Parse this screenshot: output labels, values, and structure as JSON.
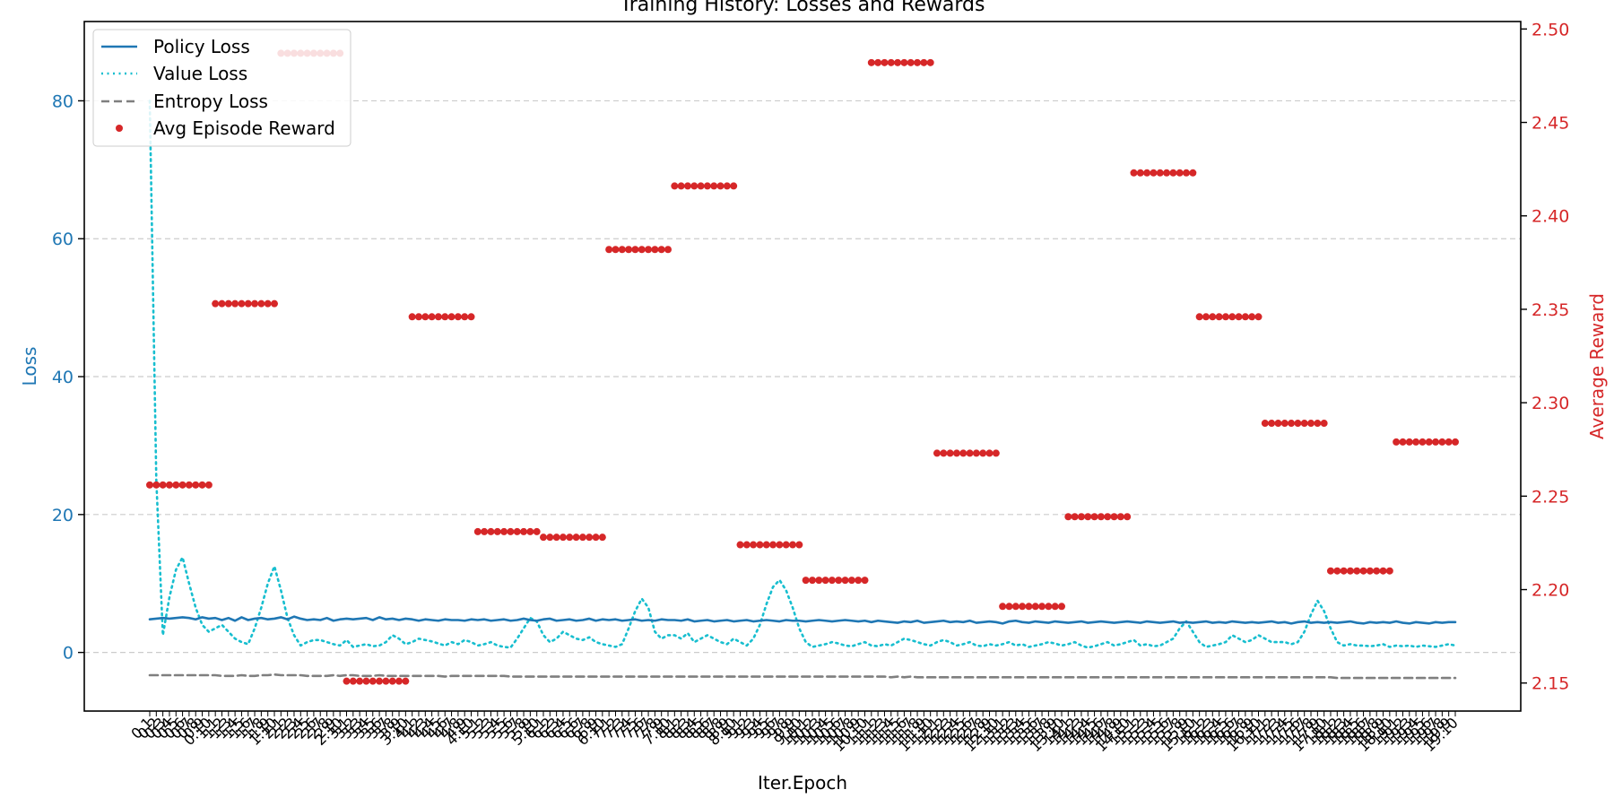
{
  "chart_data": {
    "type": "line",
    "title": "Training History: Losses and Rewards",
    "xlabel": "Iter.Epoch",
    "ylabel_left": "Loss",
    "ylabel_right": "Average Reward",
    "ylim_left": [
      -8.5,
      91.5
    ],
    "ylim_right": [
      2.135,
      2.504
    ],
    "yticks_left": [
      "0",
      "20",
      "40",
      "60",
      "80"
    ],
    "yticks_right": [
      "2.15",
      "2.20",
      "2.25",
      "2.30",
      "2.35",
      "2.40",
      "2.45",
      "2.50"
    ],
    "grid": "horizontal-dashed",
    "legend_position": "upper-left",
    "x_ticks": [
      "0.1",
      "0.2",
      "0.3",
      "0.4",
      "0.5",
      "0.6",
      "0.7",
      "0.8",
      "0.9",
      "0.10",
      "1.1",
      "1.2",
      "1.3",
      "1.4",
      "1.5",
      "1.6",
      "1.7",
      "1.8",
      "1.9",
      "1.10",
      "2.1",
      "2.2",
      "2.3",
      "2.4",
      "2.5",
      "2.6",
      "2.7",
      "2.8",
      "2.9",
      "2.10",
      "3.1",
      "3.2",
      "3.3",
      "3.4",
      "3.5",
      "3.6",
      "3.7",
      "3.8",
      "3.9",
      "3.10",
      "4.1",
      "4.2",
      "4.3",
      "4.4",
      "4.5",
      "4.6",
      "4.7",
      "4.8",
      "4.9",
      "4.10",
      "5.1",
      "5.2",
      "5.3",
      "5.4",
      "5.5",
      "5.6",
      "5.7",
      "5.8",
      "5.9",
      "5.10",
      "6.1",
      "6.2",
      "6.3",
      "6.4",
      "6.5",
      "6.6",
      "6.7",
      "6.8",
      "6.9",
      "6.10",
      "7.1",
      "7.2",
      "7.3",
      "7.4",
      "7.5",
      "7.6",
      "7.7",
      "7.8",
      "7.9",
      "7.10",
      "8.1",
      "8.2",
      "8.3",
      "8.4",
      "8.5",
      "8.6",
      "8.7",
      "8.8",
      "8.9",
      "8.10",
      "9.1",
      "9.2",
      "9.3",
      "9.4",
      "9.5",
      "9.6",
      "9.7",
      "9.8",
      "9.9",
      "9.10",
      "10.1",
      "10.2",
      "10.3",
      "10.4",
      "10.5",
      "10.6",
      "10.7",
      "10.8",
      "10.9",
      "10.10",
      "11.1",
      "11.2",
      "11.3",
      "11.4",
      "11.5",
      "11.6",
      "11.7",
      "11.8",
      "11.9",
      "11.10",
      "12.1",
      "12.2",
      "12.3",
      "12.4",
      "12.5",
      "12.6",
      "12.7",
      "12.8",
      "12.9",
      "12.10",
      "13.1",
      "13.2",
      "13.3",
      "13.4",
      "13.5",
      "13.6",
      "13.7",
      "13.8",
      "13.9",
      "13.10",
      "14.1",
      "14.2",
      "14.3",
      "14.4",
      "14.5",
      "14.6",
      "14.7",
      "14.8",
      "14.9",
      "14.10",
      "15.1",
      "15.2",
      "15.3",
      "15.4",
      "15.5",
      "15.6",
      "15.7",
      "15.8",
      "15.9",
      "15.10",
      "16.1",
      "16.2",
      "16.3",
      "16.4",
      "16.5",
      "16.6",
      "16.7",
      "16.8",
      "16.9",
      "16.10",
      "17.1",
      "17.2",
      "17.3",
      "17.4",
      "17.5",
      "17.6",
      "17.7",
      "17.8",
      "17.9",
      "17.10",
      "18.1",
      "18.2",
      "18.3",
      "18.4",
      "18.5",
      "18.6",
      "18.7",
      "18.8",
      "18.9",
      "18.10",
      "19.1",
      "19.2",
      "19.3",
      "19.4",
      "19.5",
      "19.6",
      "19.7",
      "19.8",
      "19.9",
      "19.10"
    ],
    "reward_per_iteration": [
      2.256,
      2.353,
      2.487,
      2.151,
      2.346,
      2.231,
      2.228,
      2.382,
      2.416,
      2.224,
      2.205,
      2.482,
      2.273,
      2.191,
      2.239,
      2.423,
      2.346,
      2.289,
      2.21,
      2.279
    ],
    "series": [
      {
        "name": "Policy Loss",
        "axis": "left",
        "color": "#1f77b4",
        "style": "solid",
        "values": [
          4.8,
          4.9,
          5.0,
          4.9,
          5.0,
          5.1,
          5.0,
          4.8,
          5.1,
          4.9,
          5.0,
          4.7,
          5.0,
          4.6,
          5.1,
          4.7,
          4.9,
          5.0,
          4.8,
          4.9,
          5.1,
          4.8,
          5.2,
          4.9,
          4.7,
          4.8,
          4.7,
          5.0,
          4.6,
          4.8,
          4.9,
          4.8,
          4.9,
          5.0,
          4.7,
          5.1,
          4.8,
          4.9,
          4.7,
          4.9,
          4.8,
          4.6,
          4.8,
          4.7,
          4.6,
          4.8,
          4.7,
          4.7,
          4.6,
          4.8,
          4.7,
          4.8,
          4.6,
          4.7,
          4.8,
          4.6,
          4.7,
          4.9,
          4.7,
          4.6,
          4.8,
          4.9,
          4.6,
          4.7,
          4.8,
          4.6,
          4.7,
          4.9,
          4.6,
          4.8,
          4.7,
          4.8,
          4.6,
          4.7,
          4.8,
          4.6,
          4.7,
          4.6,
          4.8,
          4.7,
          4.7,
          4.6,
          4.8,
          4.5,
          4.6,
          4.7,
          4.5,
          4.6,
          4.7,
          4.5,
          4.6,
          4.7,
          4.5,
          4.6,
          4.7,
          4.6,
          4.5,
          4.7,
          4.6,
          4.6,
          4.5,
          4.6,
          4.7,
          4.6,
          4.5,
          4.6,
          4.7,
          4.6,
          4.5,
          4.6,
          4.4,
          4.6,
          4.5,
          4.4,
          4.3,
          4.5,
          4.4,
          4.6,
          4.3,
          4.4,
          4.5,
          4.6,
          4.4,
          4.5,
          4.4,
          4.6,
          4.3,
          4.4,
          4.5,
          4.4,
          4.2,
          4.5,
          4.6,
          4.4,
          4.3,
          4.5,
          4.4,
          4.3,
          4.5,
          4.4,
          4.3,
          4.4,
          4.5,
          4.3,
          4.4,
          4.5,
          4.4,
          4.3,
          4.4,
          4.5,
          4.4,
          4.3,
          4.5,
          4.4,
          4.3,
          4.4,
          4.5,
          4.3,
          4.4,
          4.3,
          4.4,
          4.5,
          4.3,
          4.4,
          4.3,
          4.5,
          4.4,
          4.3,
          4.4,
          4.3,
          4.4,
          4.5,
          4.3,
          4.4,
          4.2,
          4.4,
          4.5,
          4.3,
          4.4,
          4.3,
          4.4,
          4.3,
          4.4,
          4.5,
          4.3,
          4.2,
          4.4,
          4.3,
          4.4,
          4.3,
          4.5,
          4.3,
          4.2,
          4.4,
          4.3,
          4.2,
          4.4,
          4.3,
          4.4,
          4.4
        ]
      },
      {
        "name": "Value Loss",
        "axis": "left",
        "color": "#17becf",
        "style": "dotted",
        "values": [
          80.0,
          25.0,
          2.5,
          8.0,
          12.0,
          13.8,
          10.0,
          6.5,
          4.0,
          3.0,
          3.5,
          4.0,
          3.0,
          2.0,
          1.5,
          1.2,
          3.5,
          6.5,
          10.0,
          12.5,
          9.0,
          5.0,
          2.5,
          1.0,
          1.5,
          1.8,
          1.8,
          1.5,
          1.2,
          1.0,
          1.8,
          0.8,
          1.0,
          1.2,
          0.9,
          1.0,
          1.5,
          2.5,
          2.0,
          1.2,
          1.5,
          2.0,
          1.8,
          1.6,
          1.3,
          1.0,
          1.5,
          1.2,
          1.8,
          1.5,
          1.0,
          1.2,
          1.5,
          1.0,
          0.8,
          0.7,
          2.0,
          3.5,
          5.0,
          4.5,
          2.5,
          1.5,
          2.0,
          3.0,
          2.5,
          2.0,
          1.8,
          2.2,
          1.5,
          1.2,
          1.0,
          0.8,
          1.2,
          3.5,
          6.0,
          7.8,
          6.5,
          3.0,
          2.0,
          2.5,
          2.5,
          2.0,
          2.8,
          1.5,
          2.0,
          2.5,
          2.0,
          1.5,
          1.2,
          2.0,
          1.5,
          1.0,
          2.0,
          4.0,
          7.0,
          9.5,
          10.5,
          9.0,
          6.5,
          3.5,
          1.5,
          0.8,
          1.0,
          1.2,
          1.5,
          1.3,
          1.0,
          0.9,
          1.2,
          1.5,
          1.0,
          0.9,
          1.2,
          1.0,
          1.5,
          2.0,
          1.8,
          1.5,
          1.2,
          1.0,
          1.5,
          1.8,
          1.5,
          1.0,
          1.2,
          1.5,
          1.0,
          0.9,
          1.2,
          1.0,
          1.2,
          1.5,
          1.0,
          1.2,
          0.8,
          1.0,
          1.2,
          1.5,
          1.3,
          1.0,
          1.2,
          1.5,
          1.0,
          0.7,
          0.9,
          1.2,
          1.5,
          1.0,
          1.2,
          1.5,
          1.8,
          1.0,
          1.2,
          0.9,
          1.0,
          1.5,
          2.0,
          3.5,
          4.5,
          3.0,
          1.5,
          0.8,
          1.0,
          1.2,
          1.5,
          2.5,
          2.0,
          1.5,
          1.8,
          2.5,
          2.0,
          1.5,
          1.5,
          1.5,
          1.2,
          1.5,
          3.0,
          5.5,
          7.5,
          6.0,
          3.5,
          1.5,
          1.0,
          1.2,
          1.0,
          1.0,
          0.9,
          1.0,
          1.2,
          0.8,
          1.0,
          0.9,
          1.0,
          0.8,
          1.0,
          0.9,
          0.8,
          1.0,
          1.2,
          1.0
        ]
      },
      {
        "name": "Entropy Loss",
        "axis": "left",
        "color": "#7f7f7f",
        "style": "dashed",
        "values": [
          -3.3,
          -3.3,
          -3.3,
          -3.3,
          -3.3,
          -3.3,
          -3.3,
          -3.3,
          -3.3,
          -3.3,
          -3.3,
          -3.4,
          -3.4,
          -3.4,
          -3.3,
          -3.4,
          -3.4,
          -3.3,
          -3.3,
          -3.2,
          -3.3,
          -3.3,
          -3.3,
          -3.3,
          -3.4,
          -3.4,
          -3.4,
          -3.4,
          -3.3,
          -3.4,
          -3.3,
          -3.3,
          -3.4,
          -3.4,
          -3.4,
          -3.3,
          -3.4,
          -3.4,
          -3.4,
          -3.4,
          -3.4,
          -3.4,
          -3.4,
          -3.4,
          -3.4,
          -3.5,
          -3.4,
          -3.4,
          -3.4,
          -3.4,
          -3.4,
          -3.4,
          -3.4,
          -3.4,
          -3.4,
          -3.5,
          -3.5,
          -3.5,
          -3.5,
          -3.5,
          -3.5,
          -3.5,
          -3.5,
          -3.5,
          -3.5,
          -3.5,
          -3.5,
          -3.5,
          -3.5,
          -3.5,
          -3.5,
          -3.5,
          -3.5,
          -3.5,
          -3.5,
          -3.5,
          -3.5,
          -3.5,
          -3.5,
          -3.5,
          -3.5,
          -3.5,
          -3.5,
          -3.5,
          -3.5,
          -3.5,
          -3.5,
          -3.5,
          -3.5,
          -3.5,
          -3.5,
          -3.5,
          -3.5,
          -3.5,
          -3.5,
          -3.5,
          -3.5,
          -3.5,
          -3.5,
          -3.5,
          -3.5,
          -3.5,
          -3.5,
          -3.5,
          -3.5,
          -3.5,
          -3.5,
          -3.5,
          -3.5,
          -3.5,
          -3.5,
          -3.5,
          -3.5,
          -3.6,
          -3.5,
          -3.6,
          -3.5,
          -3.6,
          -3.6,
          -3.6,
          -3.6,
          -3.6,
          -3.6,
          -3.6,
          -3.6,
          -3.6,
          -3.6,
          -3.6,
          -3.6,
          -3.6,
          -3.6,
          -3.6,
          -3.6,
          -3.6,
          -3.6,
          -3.6,
          -3.6,
          -3.6,
          -3.6,
          -3.6,
          -3.6,
          -3.6,
          -3.6,
          -3.6,
          -3.6,
          -3.6,
          -3.6,
          -3.6,
          -3.6,
          -3.6,
          -3.6,
          -3.6,
          -3.6,
          -3.6,
          -3.6,
          -3.6,
          -3.6,
          -3.6,
          -3.6,
          -3.6,
          -3.6,
          -3.6,
          -3.6,
          -3.6,
          -3.6,
          -3.6,
          -3.6,
          -3.6,
          -3.6,
          -3.6,
          -3.6,
          -3.6,
          -3.6,
          -3.6,
          -3.6,
          -3.6,
          -3.6,
          -3.6,
          -3.6,
          -3.6,
          -3.6,
          -3.7,
          -3.7,
          -3.7,
          -3.7,
          -3.7,
          -3.7,
          -3.7,
          -3.7,
          -3.7,
          -3.7,
          -3.7,
          -3.7,
          -3.7,
          -3.7,
          -3.7,
          -3.7,
          -3.7,
          -3.7,
          -3.7
        ]
      },
      {
        "name": "Avg Episode Reward",
        "axis": "right",
        "color": "#d62728",
        "style": "points"
      }
    ]
  },
  "colors": {
    "left_axis": "#1f77b4",
    "right_axis": "#d62728",
    "grid": "#cccccc"
  }
}
